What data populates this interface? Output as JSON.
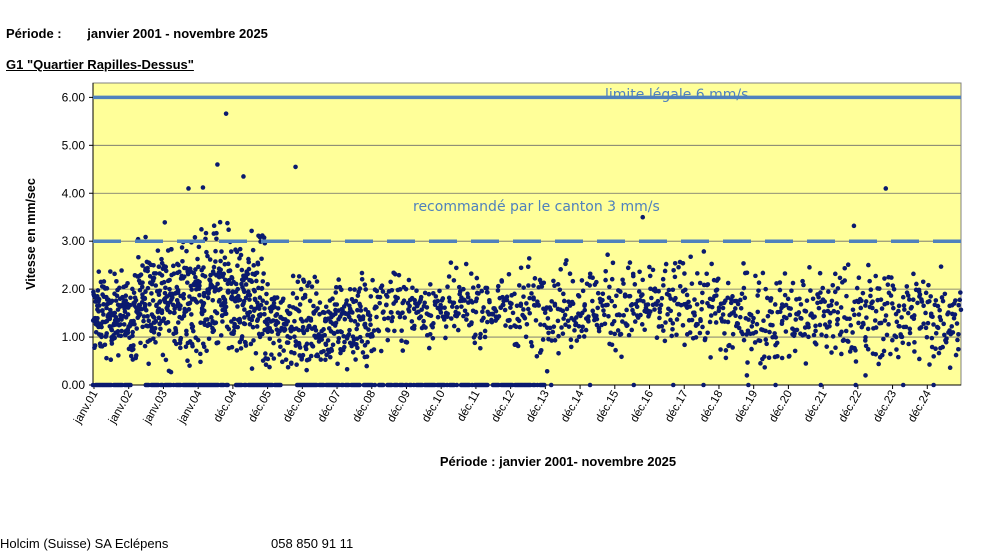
{
  "header": {
    "period_label": "Période :",
    "period_value": "janvier 2001 - novembre 2025",
    "station_title": "G1 \"Quartier Rapilles-Dessus\""
  },
  "footer": {
    "company": "Holcim (Suisse) SA Eclépens",
    "phone": "058 850 91 11"
  },
  "chart_data": {
    "type": "scatter",
    "xlabel": "Période : janvier 2001- novembre 2025",
    "ylabel": "Vitesse en mm/sec",
    "ylim": [
      0,
      6.3
    ],
    "yticks": [
      "0.00",
      "1.00",
      "2.00",
      "3.00",
      "4.00",
      "5.00",
      "6.00"
    ],
    "xticks": [
      "janv.01",
      "janv.02",
      "janv.03",
      "janv.04",
      "déc.04",
      "déc.05",
      "déc.06",
      "déc.07",
      "déc.08",
      "déc.09",
      "déc.10",
      "déc.11",
      "déc.12",
      "déc.13",
      "déc.14",
      "déc.15",
      "déc.16",
      "déc.17",
      "déc.18",
      "déc.19",
      "déc.20",
      "déc.21",
      "déc.22",
      "déc.23",
      "déc.24"
    ],
    "background_color": "#FFFF99",
    "marker_color": "#0A1A6E",
    "line_color": "#4F81BD",
    "grid": true,
    "reference_lines": [
      {
        "value": 6,
        "style": "solid",
        "label": "limite légale 6 mm/s"
      },
      {
        "value": 3,
        "style": "dashed",
        "label": "recommandé par le canton 3 mm/s"
      }
    ],
    "series": [
      {
        "x_year_ranges": [
          [
            2001,
            2005.9
          ],
          [
            2006,
            2008.9
          ],
          [
            2009,
            2012.9
          ],
          [
            2013,
            2018.9
          ],
          [
            2019,
            2025.9
          ]
        ],
        "notable_points": [
          {
            "x": "2004-11",
            "y": 5.66
          },
          {
            "x": "2004-08",
            "y": 4.6
          },
          {
            "x": "2005-05",
            "y": 4.35
          },
          {
            "x": "2006-11",
            "y": 4.55
          },
          {
            "x": "2003-10",
            "y": 4.1
          },
          {
            "x": "2004-03",
            "y": 4.12
          },
          {
            "x": "2023-11",
            "y": 4.1
          },
          {
            "x": "2022-12",
            "y": 3.32
          },
          {
            "x": "2016-11",
            "y": 3.5
          },
          {
            "x": "2023-04",
            "y": 0.2
          },
          {
            "x": "2019-11",
            "y": 0.2
          }
        ],
        "typical_range": [
          0.3,
          3.3
        ],
        "zero_readings": "frequent values at 0.00 mm/s between 2001 and 2014"
      }
    ]
  }
}
